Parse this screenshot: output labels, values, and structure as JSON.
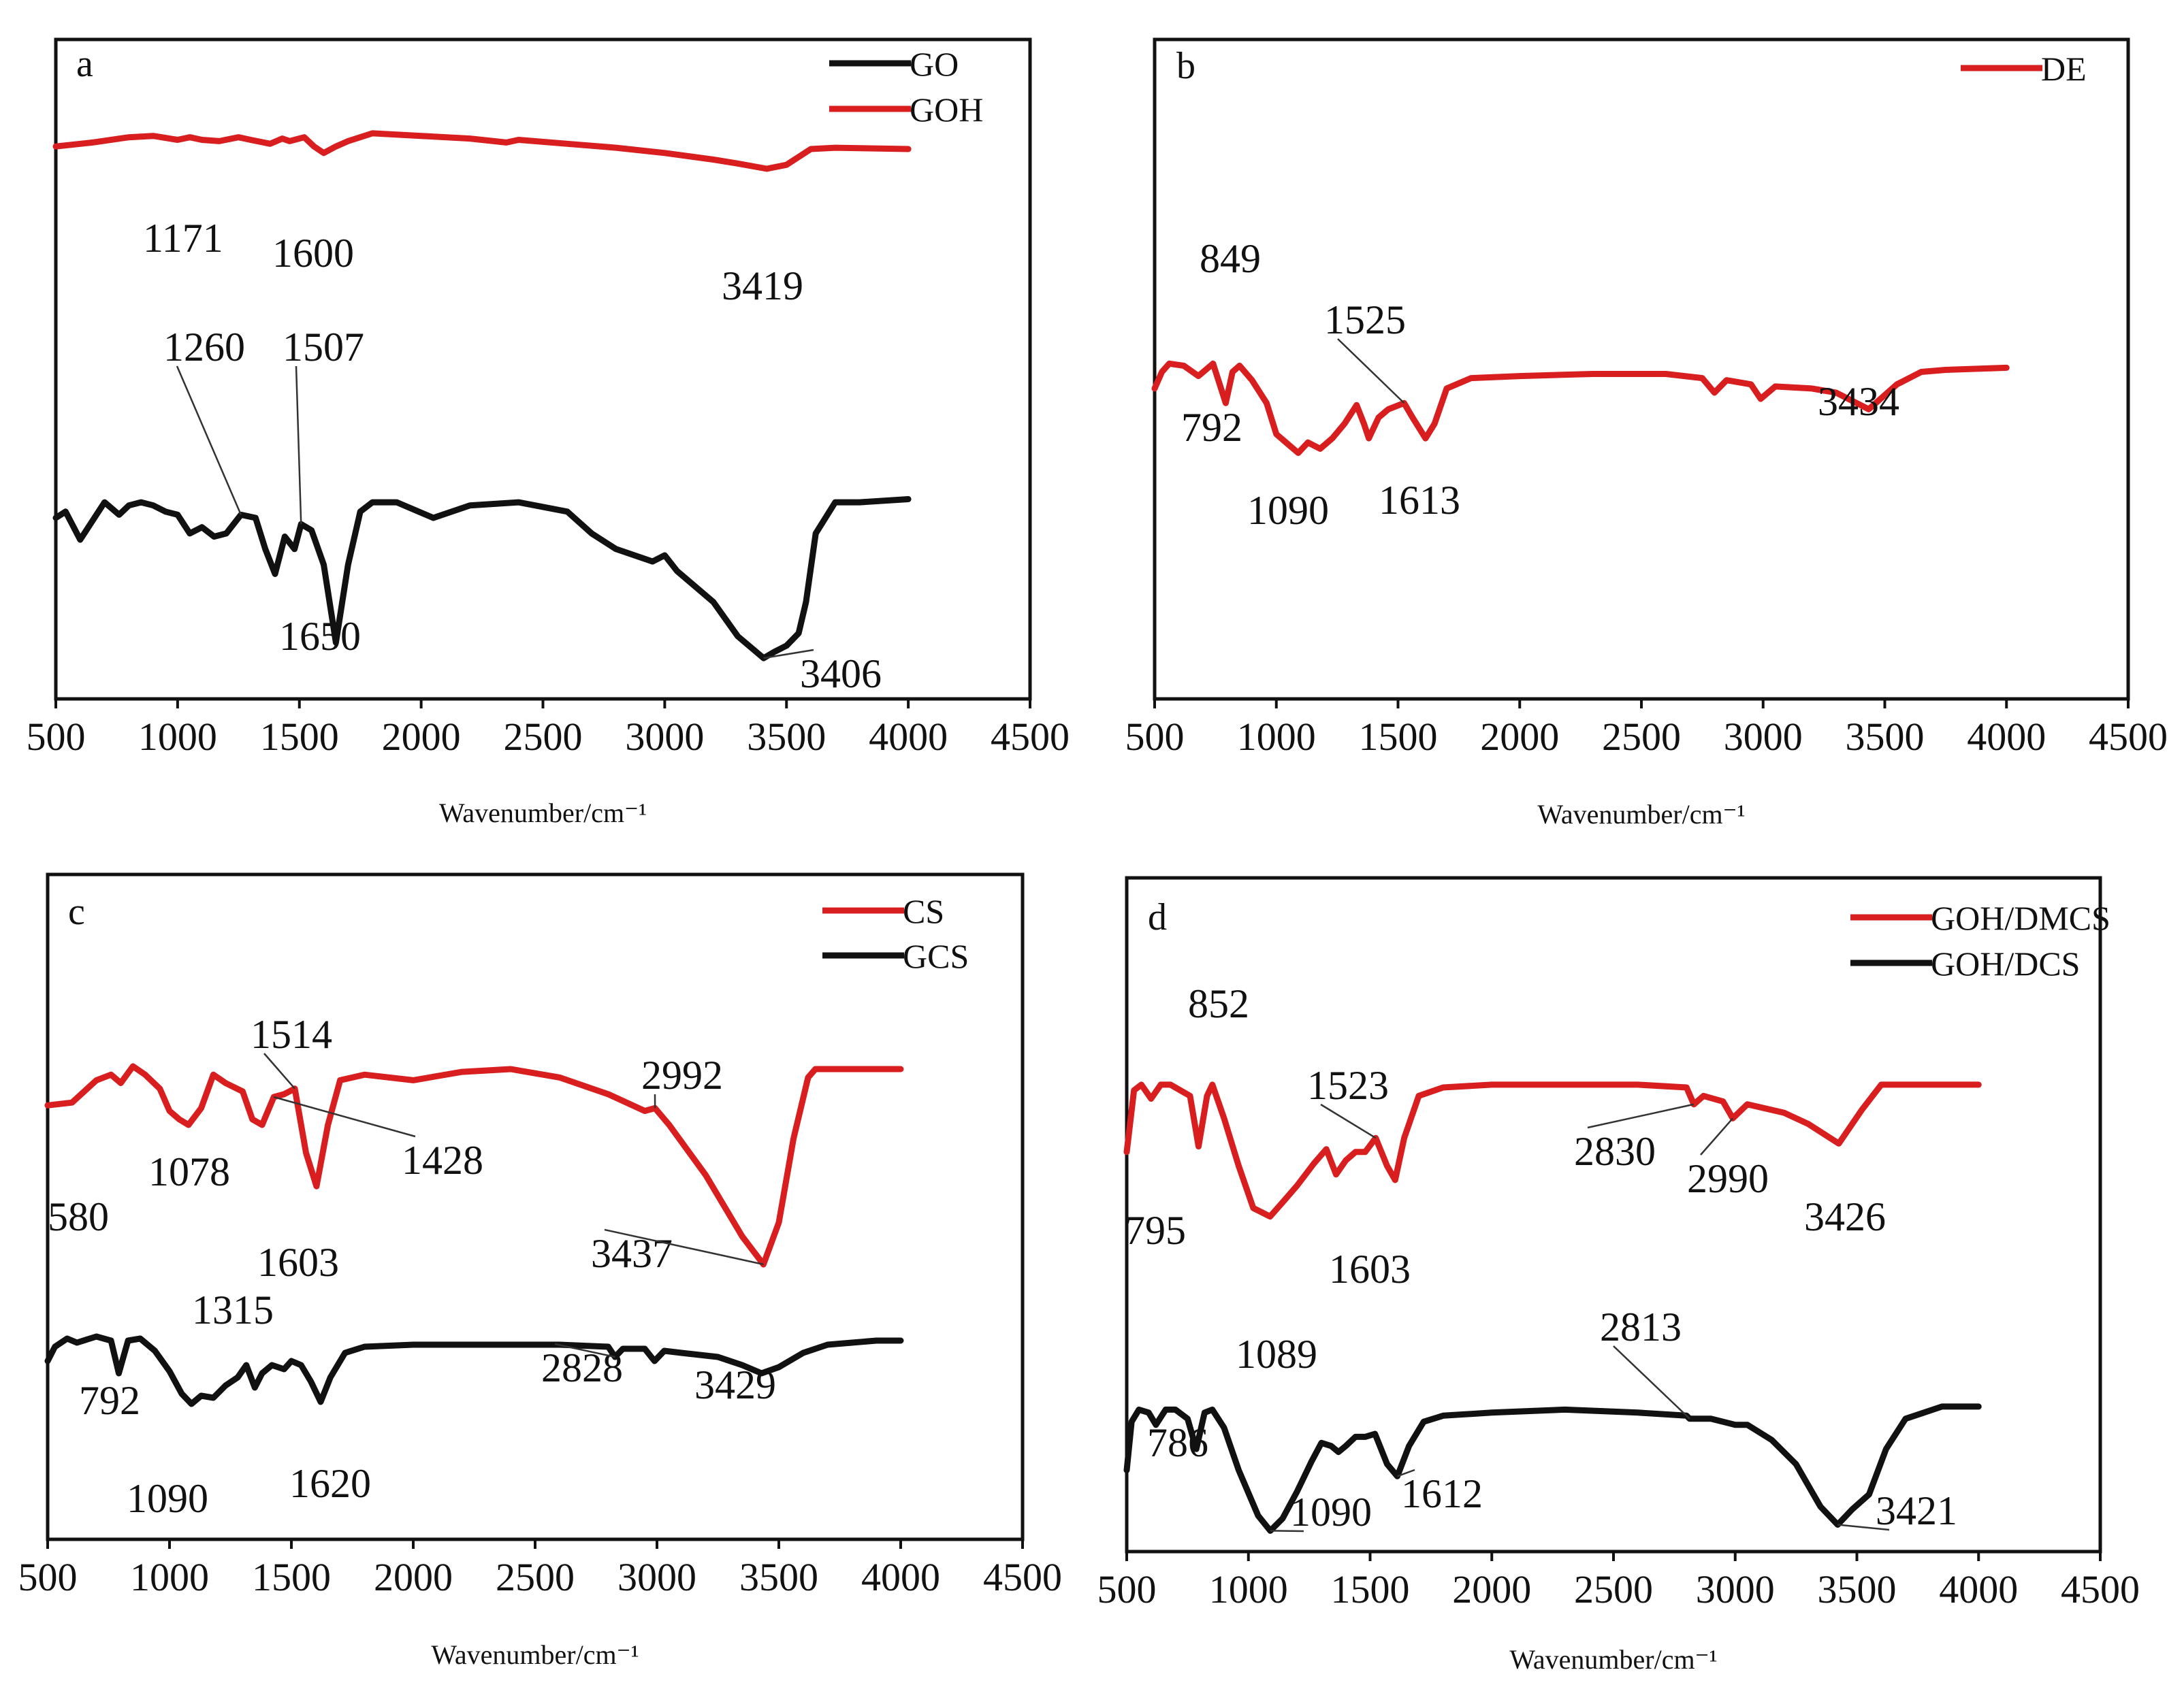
{
  "figure": {
    "domain": "FTIR spectra"
  },
  "colors": {
    "red": "#d81e1e",
    "black": "#111111"
  },
  "chart_data": [
    {
      "panel": "a",
      "type": "line",
      "xlabel": "Wavenumber/cm⁻¹",
      "xlim": [
        500,
        4500
      ],
      "xticks": [
        500,
        1000,
        1500,
        2000,
        2500,
        3000,
        3500,
        4000,
        4500
      ],
      "ylim": [
        0,
        100
      ],
      "legend": {
        "position": "top-right",
        "entries": [
          "GO",
          "GOH"
        ]
      },
      "series": [
        {
          "name": "GOH",
          "color": "red",
          "x": [
            500,
            650,
            800,
            900,
            1000,
            1050,
            1100,
            1171,
            1250,
            1300,
            1380,
            1430,
            1460,
            1520,
            1560,
            1600,
            1650,
            1700,
            1800,
            2000,
            2200,
            2350,
            2400,
            2600,
            2800,
            3000,
            3200,
            3300,
            3419,
            3500,
            3550,
            3600,
            3700,
            4000
          ],
          "y": [
            88,
            91,
            95,
            96,
            93,
            95,
            93,
            92,
            95,
            93,
            90,
            94,
            92,
            95,
            88,
            83,
            88,
            92,
            98,
            96,
            94,
            91,
            93,
            90,
            87,
            83,
            78,
            75,
            71,
            74,
            80,
            86,
            87,
            86
          ]
        },
        {
          "name": "GO",
          "color": "black",
          "x": [
            500,
            540,
            600,
            650,
            700,
            760,
            800,
            850,
            900,
            950,
            1000,
            1050,
            1100,
            1150,
            1200,
            1260,
            1320,
            1360,
            1400,
            1440,
            1480,
            1507,
            1550,
            1600,
            1650,
            1700,
            1750,
            1800,
            1900,
            2050,
            2200,
            2400,
            2600,
            2700,
            2800,
            2950,
            3000,
            3050,
            3200,
            3300,
            3406,
            3450,
            3500,
            3550,
            3580,
            3620,
            3700,
            3800,
            4000
          ],
          "y": [
            50,
            52,
            43,
            49,
            55,
            51,
            54,
            55,
            54,
            52,
            51,
            45,
            47,
            44,
            45,
            51,
            50,
            40,
            32,
            44,
            40,
            48,
            46,
            35,
            10,
            35,
            52,
            55,
            55,
            50,
            54,
            55,
            52,
            45,
            40,
            36,
            38,
            33,
            23,
            12,
            5,
            7,
            9,
            13,
            23,
            45,
            55,
            55,
            56
          ]
        }
      ],
      "annotations": [
        {
          "label": "1171",
          "series": "GOH",
          "x": 1171
        },
        {
          "label": "1600",
          "series": "GOH",
          "x": 1600
        },
        {
          "label": "3419",
          "series": "GOH",
          "x": 3419
        },
        {
          "label": "1260",
          "series": "GO",
          "x": 1260
        },
        {
          "label": "1507",
          "series": "GO",
          "x": 1507
        },
        {
          "label": "1650",
          "series": "GO",
          "x": 1650
        },
        {
          "label": "3406",
          "series": "GO",
          "x": 3406
        }
      ]
    },
    {
      "panel": "b",
      "type": "line",
      "xlabel": "Wavenumber/cm⁻¹",
      "xlim": [
        500,
        4500
      ],
      "xticks": [
        500,
        1000,
        1500,
        2000,
        2500,
        3000,
        3500,
        4000,
        4500
      ],
      "ylim": [
        0,
        100
      ],
      "legend": {
        "position": "top-right",
        "entries": [
          "DE"
        ]
      },
      "series": [
        {
          "name": "DE",
          "color": "red",
          "x": [
            500,
            530,
            560,
            620,
            680,
            740,
            792,
            820,
            849,
            900,
            960,
            1000,
            1050,
            1090,
            1130,
            1180,
            1230,
            1280,
            1330,
            1360,
            1380,
            1420,
            1460,
            1525,
            1560,
            1613,
            1650,
            1700,
            1800,
            2000,
            2300,
            2600,
            2750,
            2800,
            2850,
            2950,
            2990,
            3050,
            3200,
            3300,
            3434,
            3550,
            3650,
            3750,
            4000
          ],
          "y": [
            62,
            70,
            74,
            73,
            68,
            74,
            55,
            70,
            73,
            66,
            55,
            40,
            35,
            31,
            36,
            33,
            38,
            45,
            54,
            45,
            38,
            48,
            52,
            55,
            48,
            38,
            45,
            62,
            67,
            68,
            69,
            69,
            67,
            60,
            66,
            64,
            57,
            63,
            62,
            60,
            52,
            64,
            70,
            71,
            72
          ]
        }
      ],
      "annotations": [
        {
          "label": "849",
          "series": "DE",
          "x": 849
        },
        {
          "label": "792",
          "series": "DE",
          "x": 792
        },
        {
          "label": "1525",
          "series": "DE",
          "x": 1525
        },
        {
          "label": "1090",
          "series": "DE",
          "x": 1090
        },
        {
          "label": "1613",
          "series": "DE",
          "x": 1613
        },
        {
          "label": "3434",
          "series": "DE",
          "x": 3434
        }
      ]
    },
    {
      "panel": "c",
      "type": "line",
      "xlabel": "Wavenumber/cm⁻¹",
      "xlim": [
        500,
        4500
      ],
      "xticks": [
        500,
        1000,
        1500,
        2000,
        2500,
        3000,
        3500,
        4000,
        4500
      ],
      "ylim": [
        0,
        100
      ],
      "legend": {
        "position": "top-right",
        "entries": [
          "CS",
          "GCS"
        ]
      },
      "series": [
        {
          "name": "CS",
          "color": "red",
          "x": [
            500,
            600,
            700,
            760,
            800,
            850,
            900,
            960,
            1000,
            1040,
            1078,
            1130,
            1180,
            1230,
            1300,
            1340,
            1380,
            1428,
            1470,
            1514,
            1560,
            1603,
            1650,
            1700,
            1800,
            2000,
            2200,
            2400,
            2600,
            2800,
            2950,
            2992,
            3050,
            3200,
            3350,
            3437,
            3500,
            3560,
            3620,
            3650,
            3700,
            4000
          ],
          "y": [
            77,
            78,
            86,
            88,
            85,
            91,
            88,
            83,
            75,
            72,
            70,
            76,
            88,
            85,
            82,
            72,
            70,
            80,
            81,
            83,
            60,
            48,
            70,
            86,
            88,
            86,
            89,
            90,
            87,
            81,
            75,
            76,
            70,
            52,
            30,
            20,
            35,
            65,
            87,
            90,
            90,
            90
          ]
        },
        {
          "name": "GCS",
          "color": "black",
          "x": [
            500,
            530,
            580,
            620,
            700,
            760,
            792,
            830,
            880,
            940,
            1000,
            1050,
            1090,
            1130,
            1180,
            1230,
            1280,
            1315,
            1350,
            1380,
            1420,
            1470,
            1500,
            1540,
            1580,
            1620,
            1660,
            1720,
            1800,
            2000,
            2300,
            2600,
            2800,
            2828,
            2860,
            2950,
            2990,
            3030,
            3100,
            3250,
            3350,
            3429,
            3500,
            3600,
            3700,
            3800,
            3900,
            4000
          ],
          "y": [
            40,
            47,
            51,
            49,
            52,
            50,
            34,
            50,
            51,
            45,
            35,
            24,
            19,
            23,
            22,
            28,
            32,
            38,
            27,
            34,
            38,
            36,
            40,
            38,
            30,
            20,
            32,
            44,
            47,
            48,
            48,
            48,
            47,
            42,
            46,
            46,
            40,
            45,
            44,
            42,
            38,
            34,
            37,
            44,
            48,
            49,
            50,
            50
          ]
        }
      ],
      "annotations": [
        {
          "label": "1514",
          "series": "CS",
          "x": 1514
        },
        {
          "label": "1078",
          "series": "CS",
          "x": 1078
        },
        {
          "label": "1428",
          "series": "CS",
          "x": 1428
        },
        {
          "label": "1603",
          "series": "CS",
          "x": 1603
        },
        {
          "label": "2992",
          "series": "CS",
          "x": 2992
        },
        {
          "label": "3437",
          "series": "CS",
          "x": 3437
        },
        {
          "label": "580",
          "series": "GCS",
          "x": 580
        },
        {
          "label": "1315",
          "series": "GCS",
          "x": 1315
        },
        {
          "label": "792",
          "series": "GCS",
          "x": 792
        },
        {
          "label": "1090",
          "series": "GCS",
          "x": 1090
        },
        {
          "label": "1620",
          "series": "GCS",
          "x": 1620
        },
        {
          "label": "2828",
          "series": "GCS",
          "x": 2828
        },
        {
          "label": "3429",
          "series": "GCS",
          "x": 3429
        }
      ]
    },
    {
      "panel": "d",
      "type": "line",
      "xlabel": "Wavenumber/cm⁻¹",
      "xlim": [
        500,
        4500
      ],
      "xticks": [
        500,
        1000,
        1500,
        2000,
        2500,
        3000,
        3500,
        4000,
        4500
      ],
      "ylim": [
        0,
        100
      ],
      "legend": {
        "position": "top-right",
        "entries": [
          "GOH/DMCS",
          "GOH/DCS"
        ]
      },
      "series": [
        {
          "name": "GOH/DMCS",
          "color": "red",
          "x": [
            500,
            530,
            560,
            600,
            640,
            680,
            720,
            760,
            795,
            830,
            852,
            900,
            960,
            1020,
            1089,
            1140,
            1200,
            1270,
            1320,
            1360,
            1400,
            1440,
            1480,
            1523,
            1570,
            1603,
            1640,
            1700,
            1800,
            2000,
            2300,
            2600,
            2800,
            2830,
            2870,
            2950,
            2990,
            3050,
            3200,
            3300,
            3426,
            3520,
            3600,
            3650,
            4000
          ],
          "y": [
            60,
            82,
            84,
            79,
            84,
            84,
            82,
            80,
            62,
            80,
            84,
            72,
            55,
            40,
            37,
            42,
            48,
            56,
            61,
            52,
            57,
            60,
            60,
            65,
            55,
            50,
            65,
            80,
            83,
            84,
            84,
            84,
            83,
            77,
            80,
            78,
            72,
            77,
            74,
            70,
            63,
            75,
            84,
            84,
            84
          ]
        },
        {
          "name": "GOH/DCS",
          "color": "black",
          "x": [
            500,
            520,
            550,
            590,
            620,
            660,
            700,
            750,
            786,
            820,
            852,
            900,
            960,
            1040,
            1090,
            1140,
            1200,
            1260,
            1300,
            1340,
            1370,
            1400,
            1440,
            1480,
            1520,
            1570,
            1612,
            1660,
            1720,
            1800,
            2000,
            2300,
            2600,
            2800,
            2813,
            2900,
            3000,
            3050,
            3150,
            3250,
            3350,
            3421,
            3480,
            3550,
            3620,
            3700,
            3850,
            4000
          ],
          "y": [
            28,
            44,
            48,
            47,
            43,
            48,
            48,
            45,
            35,
            47,
            48,
            42,
            28,
            13,
            8,
            12,
            21,
            31,
            37,
            36,
            34,
            36,
            39,
            39,
            40,
            30,
            26,
            36,
            44,
            46,
            47,
            48,
            47,
            46,
            45,
            45,
            43,
            43,
            38,
            30,
            16,
            10,
            15,
            20,
            35,
            45,
            49,
            49
          ]
        }
      ],
      "annotations": [
        {
          "label": "852",
          "series": "GOH/DMCS",
          "x": 852
        },
        {
          "label": "795",
          "series": "GOH/DMCS",
          "x": 795
        },
        {
          "label": "1523",
          "series": "GOH/DMCS",
          "x": 1523
        },
        {
          "label": "1089",
          "series": "GOH/DMCS",
          "x": 1089
        },
        {
          "label": "1603",
          "series": "GOH/DMCS",
          "x": 1603
        },
        {
          "label": "2830",
          "series": "GOH/DMCS",
          "x": 2830
        },
        {
          "label": "2990",
          "series": "GOH/DMCS",
          "x": 2990
        },
        {
          "label": "3426",
          "series": "GOH/DMCS",
          "x": 3426
        },
        {
          "label": "786",
          "series": "GOH/DCS",
          "x": 786
        },
        {
          "label": "1090",
          "series": "GOH/DCS",
          "x": 1090
        },
        {
          "label": "1612",
          "series": "GOH/DCS",
          "x": 1612
        },
        {
          "label": "2813",
          "series": "GOH/DCS",
          "x": 2813
        },
        {
          "label": "3421",
          "series": "GOH/DCS",
          "x": 3421
        }
      ]
    }
  ]
}
